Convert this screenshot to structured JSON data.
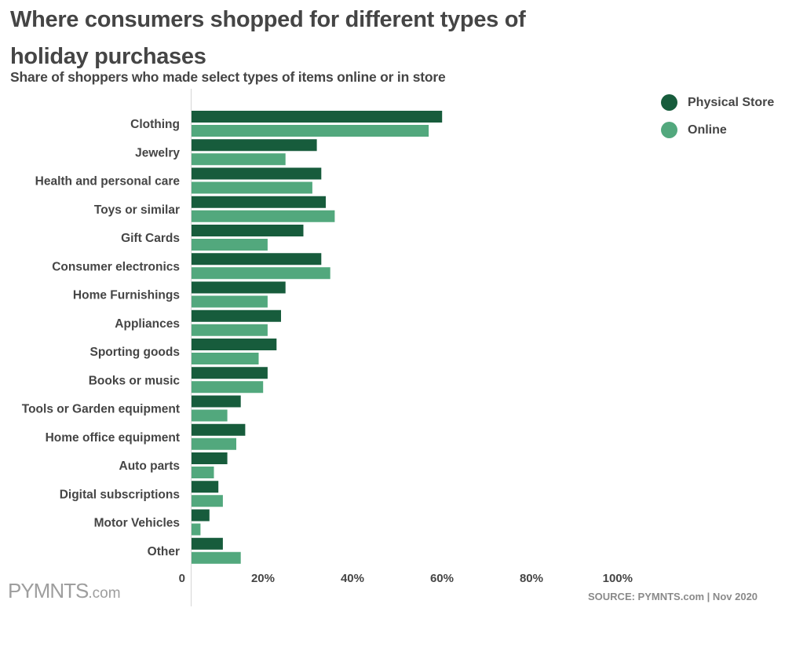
{
  "header": {
    "title": "Where consumers shopped for different types of holiday purchases",
    "subtitle": "Share of shoppers who made select types of items online or in store"
  },
  "colors": {
    "physical": "#175c3c",
    "online": "#52a87d",
    "axis": "#d6d6d6",
    "text": "#454545"
  },
  "chart_data": {
    "type": "bar",
    "orientation": "horizontal",
    "title": "Where consumers shopped for different types of holiday purchases",
    "subtitle": "Share of shoppers who made select types of items online or in store",
    "xlabel": "",
    "ylabel": "",
    "xlim": [
      0,
      100
    ],
    "x_ticks": [
      "0",
      "20%",
      "40%",
      "60%",
      "80%",
      "100%"
    ],
    "grid": false,
    "legend_position": "top-right",
    "categories": [
      "Clothing",
      "Jewelry",
      "Health and personal care",
      "Toys or similar",
      "Gift Cards",
      "Consumer electronics",
      "Home Furnishings",
      "Appliances",
      "Sporting goods",
      "Books or music",
      "Tools or Garden equipment",
      "Home office equipment",
      "Auto parts",
      "Digital subscriptions",
      "Motor Vehicles",
      "Other"
    ],
    "series": [
      {
        "name": "Physical Store",
        "values": [
          56,
          28,
          29,
          30,
          25,
          29,
          21,
          20,
          19,
          17,
          11,
          12,
          8,
          6,
          4,
          7
        ]
      },
      {
        "name": "Online",
        "values": [
          53,
          21,
          27,
          32,
          17,
          31,
          17,
          17,
          15,
          16,
          8,
          10,
          5,
          7,
          2,
          11
        ]
      }
    ]
  },
  "footer": {
    "logo_main": "PYMNTS",
    "logo_suffix": ".com",
    "source": "SOURCE: PYMNTS.com  |  Nov 2020"
  }
}
